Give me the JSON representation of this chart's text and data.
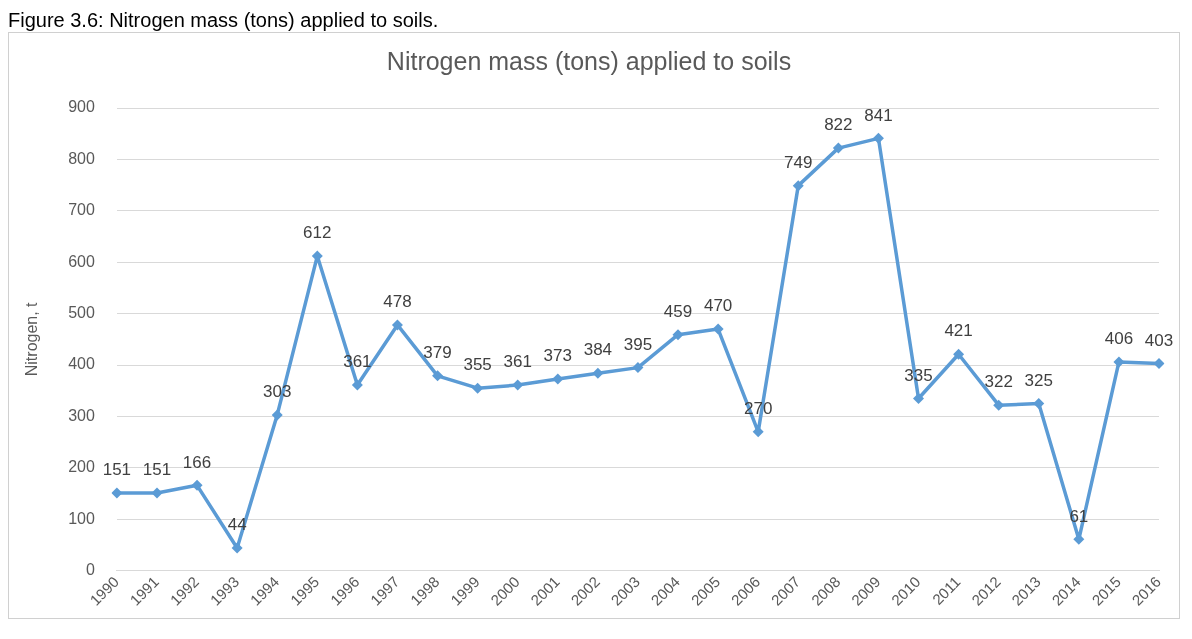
{
  "chart_data": {
    "type": "line",
    "title": "Nitrogen mass (tons) applied to soils",
    "ylabel": "Nitrogen, t",
    "annotations": [
      "Figure 3.6: Nitrogen mass (tons) applied to soils."
    ],
    "categories": [
      "1990",
      "1991",
      "1992",
      "1993",
      "1994",
      "1995",
      "1996",
      "1997",
      "1998",
      "1999",
      "2000",
      "2001",
      "2002",
      "2003",
      "2004",
      "2005",
      "2006",
      "2007",
      "2008",
      "2009",
      "2010",
      "2011",
      "2012",
      "2013",
      "2014",
      "2015",
      "2016"
    ],
    "series": [
      {
        "color": "#5b9bd5",
        "values": [
          151,
          151,
          166,
          44,
          303,
          612,
          361,
          478,
          379,
          355,
          361,
          373,
          384,
          395,
          459,
          470,
          270,
          749,
          822,
          841,
          335,
          421,
          322,
          325,
          61,
          406,
          403
        ]
      }
    ],
    "ylim": [
      0,
      900
    ],
    "yticks": [
      0,
      100,
      200,
      300,
      400,
      500,
      600,
      700,
      800,
      900
    ],
    "grid": "y",
    "legend": false,
    "marker": "diamond",
    "line_style": "solid",
    "data_labels": true
  }
}
